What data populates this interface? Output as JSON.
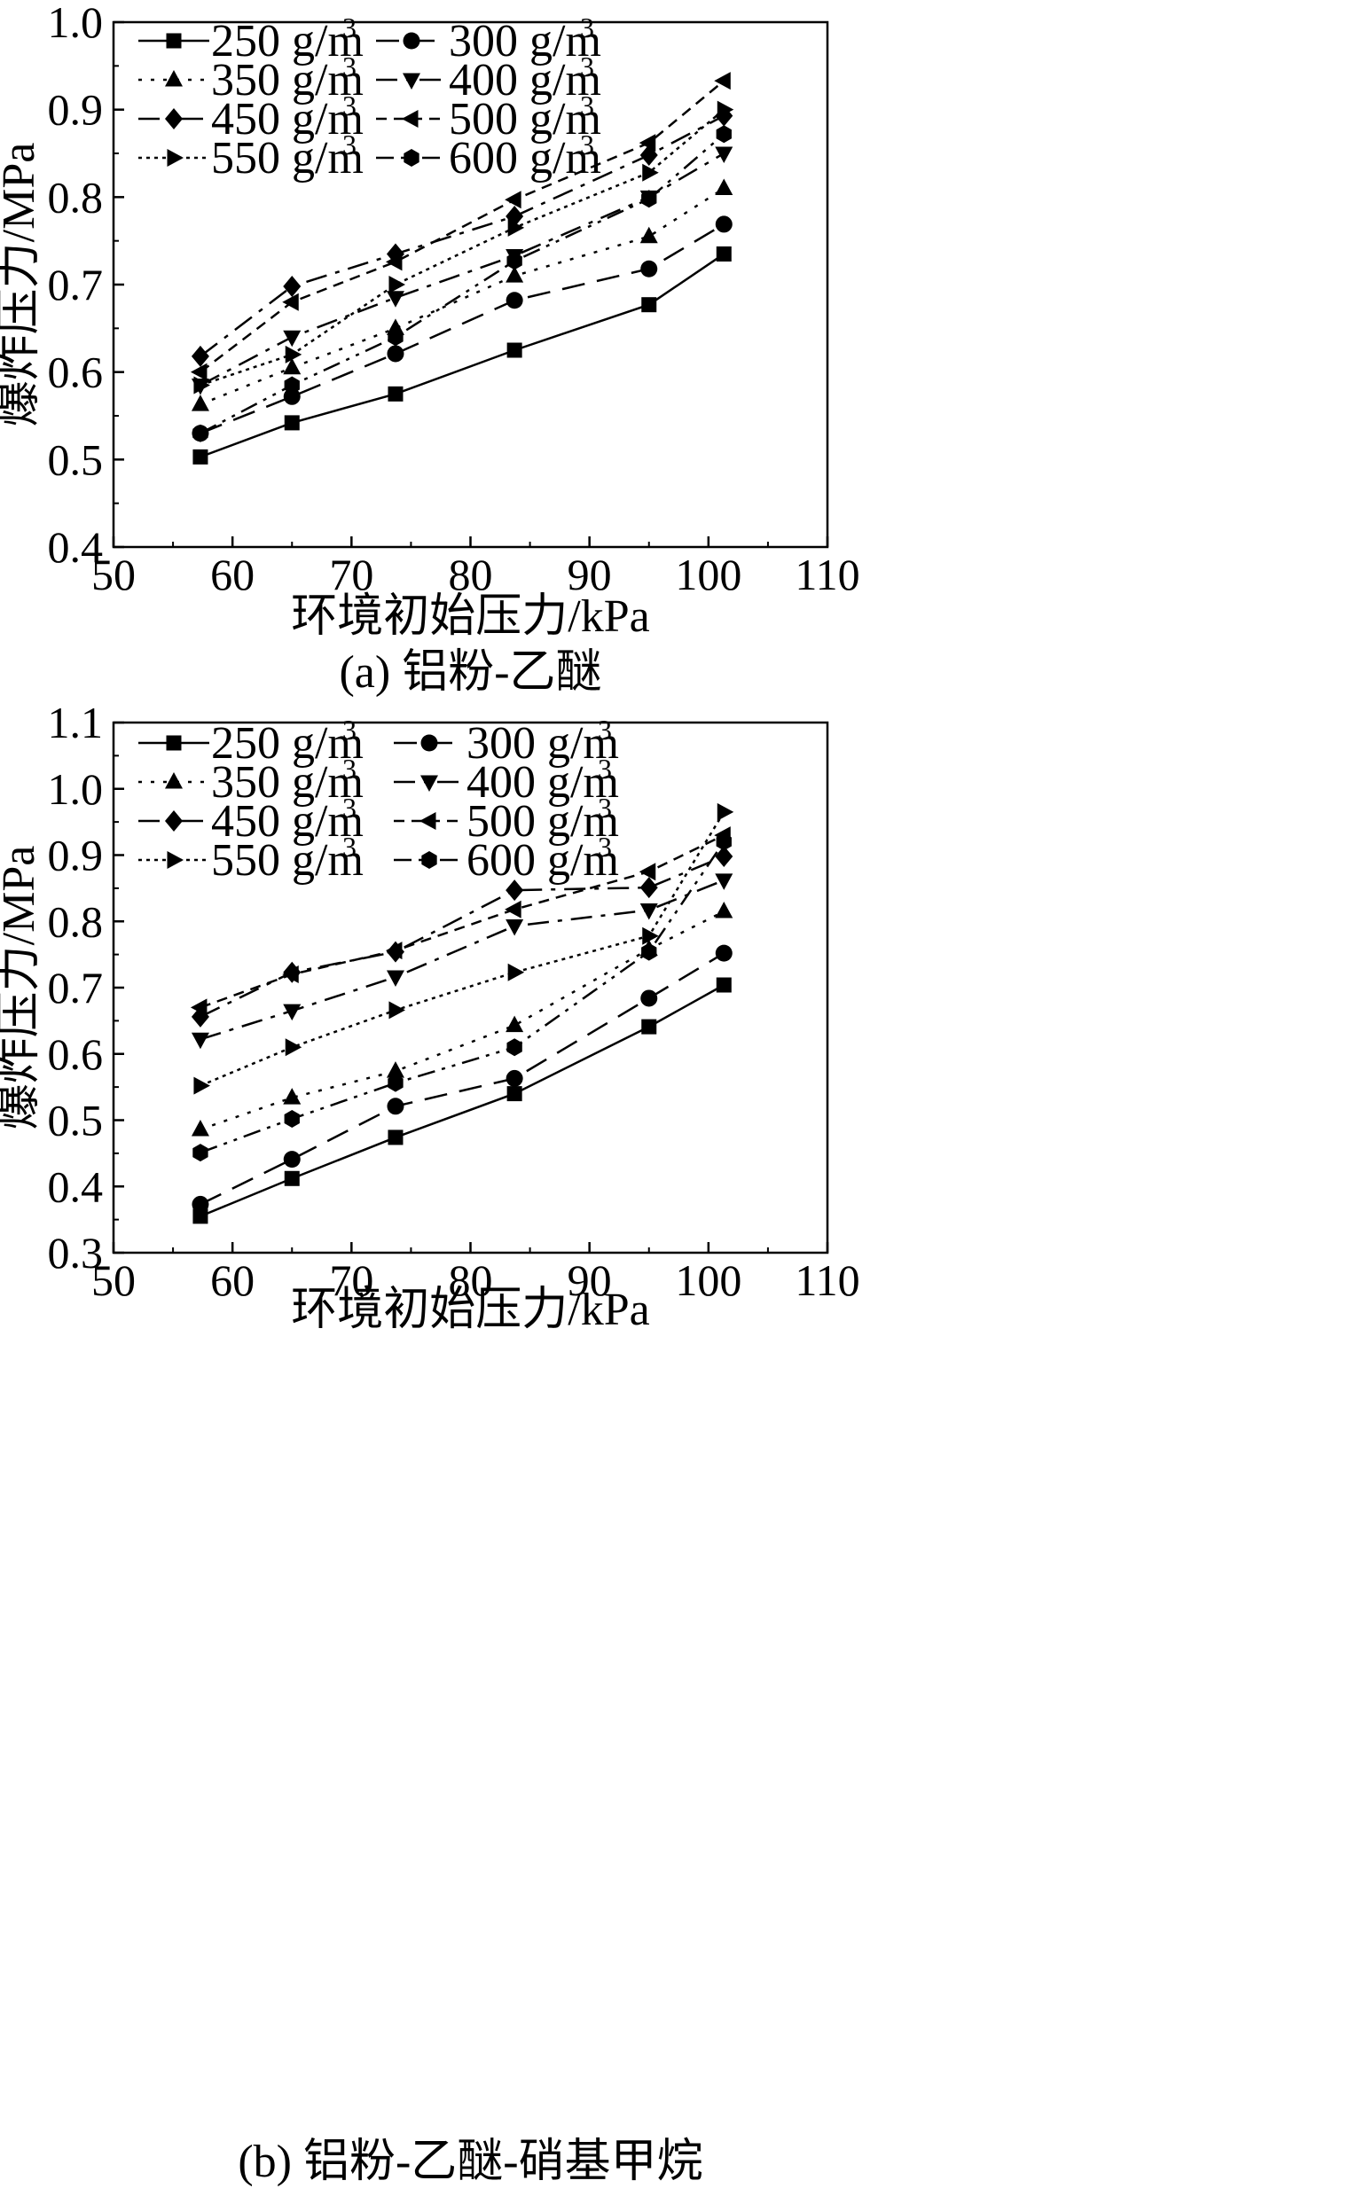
{
  "chart_data": [
    {
      "type": "line",
      "caption": "(a) 铝粉-乙醚",
      "xlabel": "环境初始压力/kPa",
      "ylabel": "爆炸压力/MPa",
      "xlim": [
        50,
        110
      ],
      "ylim": [
        0.4,
        1.0
      ],
      "xticks": [
        50,
        60,
        70,
        80,
        90,
        100,
        110
      ],
      "yticks": [
        0.4,
        0.5,
        0.6,
        0.7,
        0.8,
        0.9,
        1.0
      ],
      "x": [
        57.3,
        65.0,
        73.7,
        83.7,
        95.0,
        101.3
      ],
      "legend": "top-left, 2 columns",
      "grid": false,
      "series": [
        {
          "name": "250 g/m",
          "sup": "3",
          "marker": "square",
          "dash": "solid",
          "values": [
            0.503,
            0.542,
            0.575,
            0.625,
            0.677,
            0.735
          ]
        },
        {
          "name": "300 g/m",
          "sup": "3",
          "marker": "circle",
          "dash": "dash",
          "values": [
            0.53,
            0.572,
            0.621,
            0.682,
            0.718,
            0.769
          ]
        },
        {
          "name": "350 g/m",
          "sup": "3",
          "marker": "triangle-up",
          "dash": "dot",
          "values": [
            0.563,
            0.605,
            0.65,
            0.71,
            0.755,
            0.81
          ]
        },
        {
          "name": "400 g/m",
          "sup": "3",
          "marker": "triangle-down",
          "dash": "dashdot",
          "values": [
            0.585,
            0.64,
            0.685,
            0.733,
            0.8,
            0.85
          ]
        },
        {
          "name": "450 g/m",
          "sup": "3",
          "marker": "diamond",
          "dash": "dashdot",
          "values": [
            0.618,
            0.698,
            0.735,
            0.778,
            0.848,
            0.893
          ]
        },
        {
          "name": "500 g/m",
          "sup": "3",
          "marker": "triangle-left",
          "dash": "shortdash",
          "values": [
            0.6,
            0.68,
            0.726,
            0.797,
            0.862,
            0.933
          ]
        },
        {
          "name": "550 g/m",
          "sup": "3",
          "marker": "triangle-right",
          "dash": "densedot",
          "values": [
            0.585,
            0.62,
            0.7,
            0.765,
            0.828,
            0.9
          ]
        },
        {
          "name": "600 g/m",
          "sup": "3",
          "marker": "hexagon",
          "dash": "dashdotdot",
          "values": [
            0.53,
            0.585,
            0.64,
            0.727,
            0.798,
            0.872
          ]
        }
      ]
    },
    {
      "type": "line",
      "caption": "(b) 铝粉-乙醚-硝基甲烷",
      "xlabel": "环境初始压力/kPa",
      "ylabel": "爆炸压力/MPa",
      "xlim": [
        50,
        110
      ],
      "ylim": [
        0.3,
        1.1
      ],
      "xticks": [
        50,
        60,
        70,
        80,
        90,
        100,
        110
      ],
      "yticks": [
        0.3,
        0.4,
        0.5,
        0.6,
        0.7,
        0.8,
        0.9,
        1.0,
        1.1
      ],
      "x": [
        57.3,
        65.0,
        73.7,
        83.7,
        95.0,
        101.3
      ],
      "legend": "top-left, 2 columns",
      "grid": false,
      "series": [
        {
          "name": "250 g/m",
          "sup": "3",
          "marker": "square",
          "dash": "solid",
          "values": [
            0.355,
            0.412,
            0.474,
            0.54,
            0.641,
            0.704
          ]
        },
        {
          "name": "300 g/m",
          "sup": "3",
          "marker": "circle",
          "dash": "dash",
          "values": [
            0.373,
            0.441,
            0.521,
            0.563,
            0.684,
            0.752
          ]
        },
        {
          "name": "350 g/m",
          "sup": "3",
          "marker": "triangle-up",
          "dash": "dot",
          "values": [
            0.486,
            0.534,
            0.574,
            0.643,
            0.758,
            0.815
          ]
        },
        {
          "name": "400 g/m",
          "sup": "3",
          "marker": "triangle-down",
          "dash": "dashdot",
          "values": [
            0.622,
            0.665,
            0.716,
            0.793,
            0.817,
            0.862
          ]
        },
        {
          "name": "450 g/m",
          "sup": "3",
          "marker": "diamond",
          "dash": "dashdot",
          "values": [
            0.656,
            0.723,
            0.754,
            0.847,
            0.851,
            0.898
          ]
        },
        {
          "name": "500 g/m",
          "sup": "3",
          "marker": "triangle-left",
          "dash": "shortdash",
          "values": [
            0.67,
            0.72,
            0.756,
            0.818,
            0.875,
            0.93
          ]
        },
        {
          "name": "550 g/m",
          "sup": "3",
          "marker": "triangle-right",
          "dash": "densedot",
          "values": [
            0.552,
            0.61,
            0.666,
            0.723,
            0.778,
            0.965
          ]
        },
        {
          "name": "600 g/m",
          "sup": "3",
          "marker": "hexagon",
          "dash": "dashdotdot",
          "values": [
            0.451,
            0.502,
            0.556,
            0.61,
            0.754,
            0.92
          ]
        }
      ]
    }
  ]
}
